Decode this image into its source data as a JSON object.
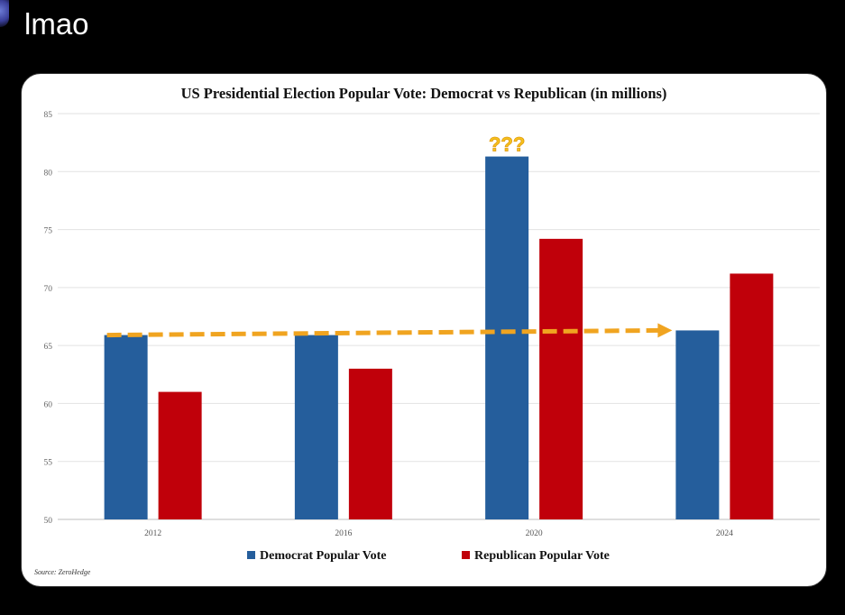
{
  "post": {
    "text": "lmao"
  },
  "chart_data": {
    "type": "bar",
    "title": "US Presidential Election Popular Vote: Democrat vs Republican (in millions)",
    "categories": [
      "2012",
      "2016",
      "2020",
      "2024"
    ],
    "series": [
      {
        "name": "Democrat Popular Vote",
        "color": "#255e9c",
        "values": [
          65.9,
          65.9,
          81.3,
          66.3
        ]
      },
      {
        "name": "Republican Popular Vote",
        "color": "#c0000a",
        "values": [
          61.0,
          63.0,
          74.2,
          71.2
        ]
      }
    ],
    "ylim": [
      50,
      85
    ],
    "yticks": [
      "50",
      "55",
      "60",
      "65",
      "70",
      "75",
      "80",
      "85"
    ],
    "grid": true,
    "legend": "bottom",
    "annotations": {
      "question_marks": "???",
      "arrow_color": "#f0a420",
      "arrow_from_value": 65.9,
      "arrow_to_value": 66.3
    },
    "source": "Source: ZeroHedge"
  }
}
